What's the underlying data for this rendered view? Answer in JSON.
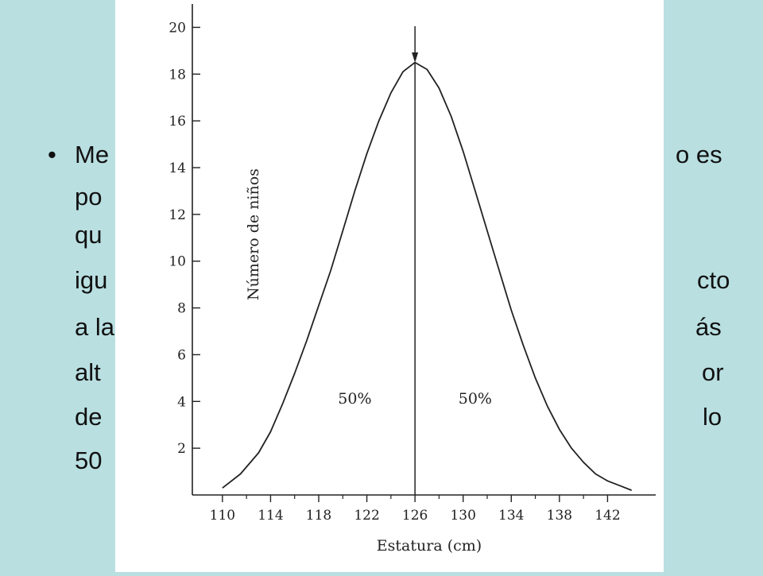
{
  "slide": {
    "bullet_glyph": "•",
    "left_fragments": [
      "Me",
      "po",
      "qu",
      "igu",
      "a la",
      "alt",
      "de",
      "50"
    ],
    "right_fragments": [
      "o es",
      "",
      "",
      "cto",
      "ás",
      "or",
      "lo",
      ""
    ]
  },
  "chart_data": {
    "type": "line",
    "title": "",
    "xlabel": "Estatura (cm)",
    "ylabel": "Número de niños",
    "xlim": [
      107.5,
      146
    ],
    "ylim": [
      0,
      21
    ],
    "x_ticks": [
      110,
      114,
      118,
      122,
      126,
      130,
      134,
      138,
      142
    ],
    "y_ticks": [
      2,
      4,
      6,
      8,
      10,
      12,
      14,
      16,
      18,
      20
    ],
    "series": [
      {
        "name": "",
        "x": [
          110,
          111.5,
          113,
          114,
          115,
          116,
          117,
          118,
          119,
          120,
          121,
          122,
          123,
          124,
          125,
          126,
          127,
          128,
          129,
          130,
          131,
          132,
          133,
          134,
          135,
          136,
          137,
          138,
          139,
          140,
          141,
          142,
          143,
          144
        ],
        "y": [
          0.3,
          0.9,
          1.8,
          2.7,
          3.9,
          5.2,
          6.6,
          8.1,
          9.6,
          11.3,
          13.0,
          14.6,
          16.0,
          17.2,
          18.1,
          18.5,
          18.2,
          17.4,
          16.2,
          14.7,
          13.0,
          11.3,
          9.6,
          7.9,
          6.4,
          5.0,
          3.8,
          2.8,
          2.0,
          1.4,
          0.9,
          0.6,
          0.4,
          0.2
        ]
      }
    ],
    "median_x": 126,
    "annotations": [
      {
        "text": "50%",
        "x": 121,
        "y": 3.9
      },
      {
        "text": "50%",
        "x": 131,
        "y": 3.9
      }
    ],
    "grid": false
  }
}
